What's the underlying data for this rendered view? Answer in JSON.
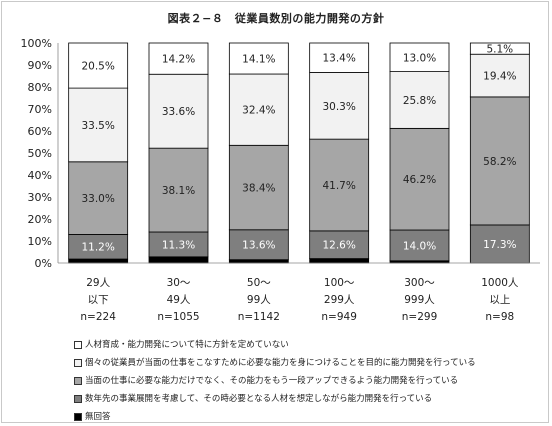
{
  "chart_data": {
    "type": "bar",
    "stacked": true,
    "title": "図表２−８　従業員数別の能力開発の方針",
    "ylim": [
      0,
      100
    ],
    "yticks": [
      "0%",
      "10%",
      "20%",
      "30%",
      "40%",
      "50%",
      "60%",
      "70%",
      "80%",
      "90%",
      "100%"
    ],
    "categories": [
      {
        "lines": [
          "29人",
          "以下",
          "n=224"
        ]
      },
      {
        "lines": [
          "30～",
          "49人",
          "n=1055"
        ]
      },
      {
        "lines": [
          "50～",
          "99人",
          "n=1142"
        ]
      },
      {
        "lines": [
          "100～",
          "299人",
          "n=949"
        ]
      },
      {
        "lines": [
          "300～",
          "999人",
          "n=299"
        ]
      },
      {
        "lines": [
          "1000人",
          "以上",
          "n=98"
        ]
      }
    ],
    "series": [
      {
        "name": "無回答",
        "color": "#000000",
        "label_color": "",
        "values": [
          1.8,
          2.8,
          1.5,
          2.0,
          1.0,
          0.0
        ],
        "labels": [
          "",
          "",
          "",
          "",
          "",
          ""
        ]
      },
      {
        "name": "数年先の事業展開を考慮して、その時必要となる人材を想定しながら能力開発を行っている",
        "color": "#7f7f7f",
        "label_color": "#ffffff",
        "values": [
          11.2,
          11.3,
          13.6,
          12.6,
          14.0,
          17.3
        ],
        "labels": [
          "11.2%",
          "11.3%",
          "13.6%",
          "12.6%",
          "14.0%",
          "17.3%"
        ]
      },
      {
        "name": "当面の仕事に必要な能力だけでなく、その能力をもう一段アップできるよう能力開発を行っている",
        "color": "#a6a6a6",
        "label_color": "#222222",
        "values": [
          33.0,
          38.1,
          38.4,
          41.7,
          46.2,
          58.2
        ],
        "labels": [
          "33.0%",
          "38.1%",
          "38.4%",
          "41.7%",
          "46.2%",
          "58.2%"
        ]
      },
      {
        "name": "個々の従業員が当面の仕事をこなすために必要な能力を身につけることを目的に能力開発を行っている",
        "color": "#f2f2f2",
        "label_color": "#222222",
        "values": [
          33.5,
          33.6,
          32.4,
          30.3,
          25.8,
          19.4
        ],
        "labels": [
          "33.5%",
          "33.6%",
          "32.4%",
          "30.3%",
          "25.8%",
          "19.4%"
        ]
      },
      {
        "name": "人材育成・能力開発について特に方針を定めていない",
        "color": "#ffffff",
        "label_color": "#222222",
        "values": [
          20.5,
          14.2,
          14.1,
          13.4,
          13.0,
          5.1
        ],
        "labels": [
          "20.5%",
          "14.2%",
          "14.1%",
          "13.4%",
          "13.0%",
          "5.1%"
        ]
      }
    ],
    "legend": {
      "position": "bottom",
      "items": [
        {
          "mark": "□",
          "color": "#ffffff",
          "text": "人材育成・能力開発について特に方針を定めていない"
        },
        {
          "mark": "□",
          "color": "#f2f2f2",
          "text": "個々の従業員が当面の仕事をこなすために必要な能力を身につけることを目的に能力開発を行っている"
        },
        {
          "mark": "■",
          "color": "#a6a6a6",
          "text": "当面の仕事に必要な能力だけでなく、その能力をもう一段アップできるよう能力開発を行っている"
        },
        {
          "mark": "■",
          "color": "#7f7f7f",
          "text": "数年先の事業展開を考慮して、その時必要となる人材を想定しながら能力開発を行っている"
        },
        {
          "mark": "■",
          "color": "#000000",
          "text": "無回答"
        }
      ]
    }
  }
}
